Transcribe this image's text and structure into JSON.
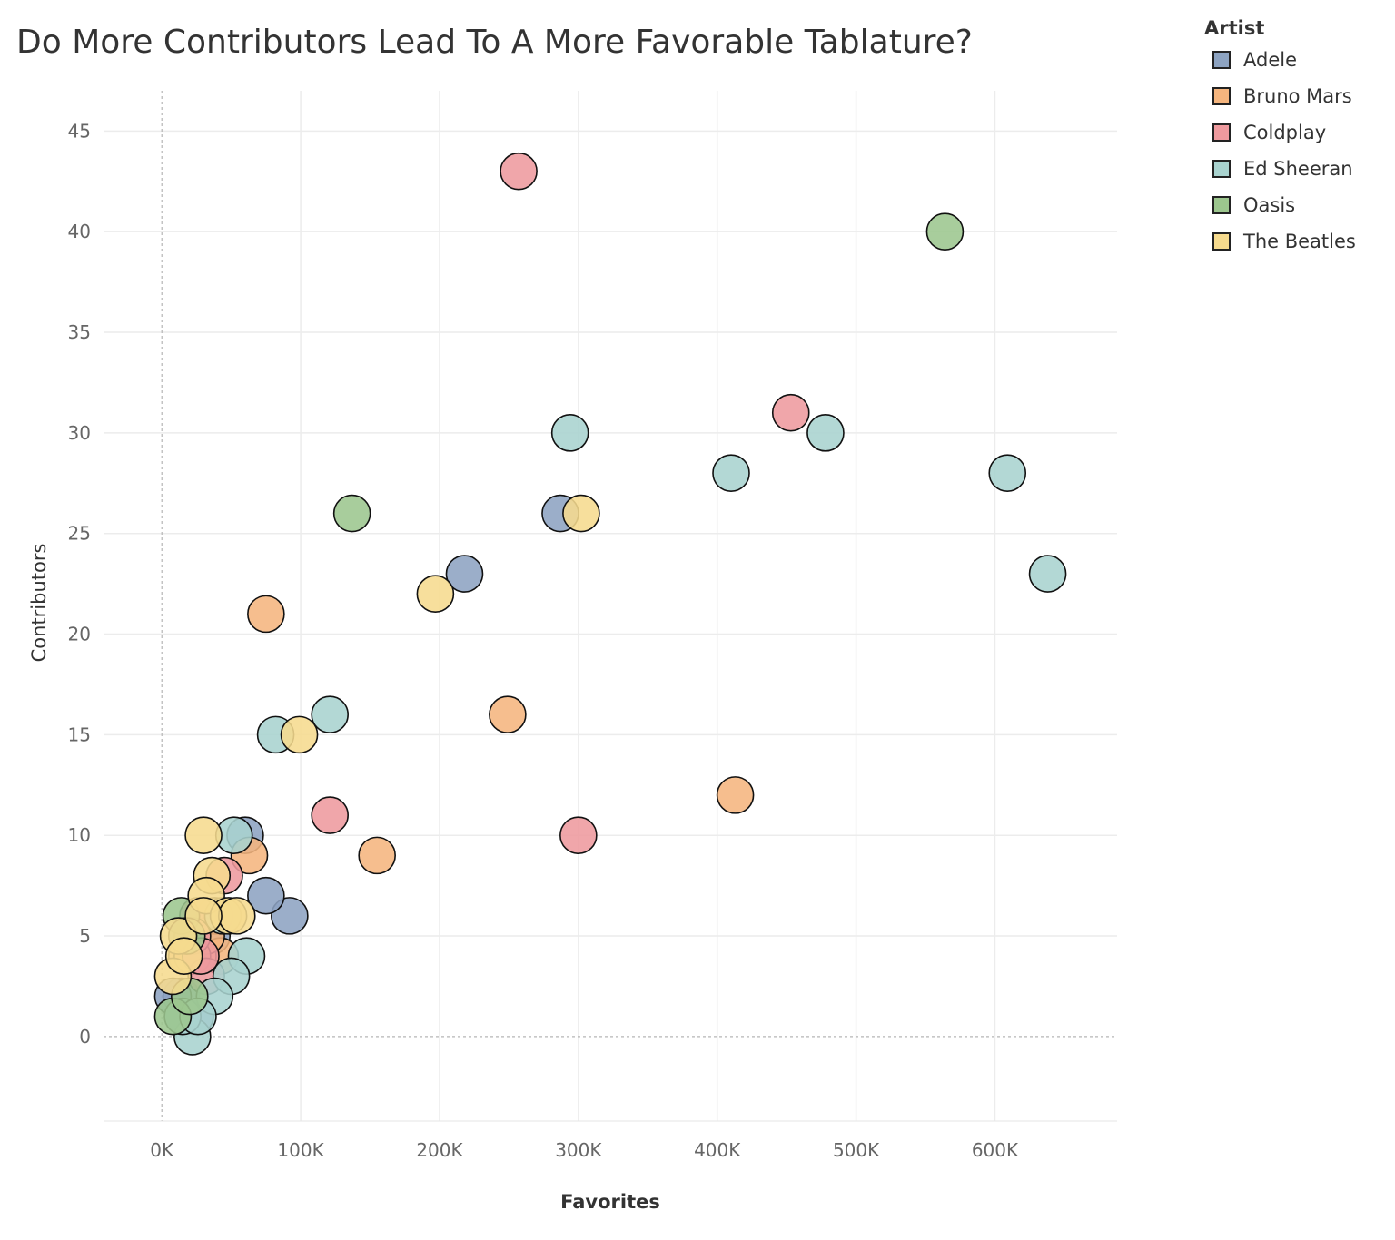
{
  "chart_data": {
    "type": "scatter",
    "title": "Do More Contributors Lead To A More Favorable Tablature?",
    "xlabel": "Favorites",
    "ylabel": "Contributors",
    "xlim": [
      -42000,
      688000
    ],
    "ylim": [
      -4.2,
      47
    ],
    "x_ticks": [
      0,
      100000,
      200000,
      300000,
      400000,
      500000,
      600000
    ],
    "x_tick_labels": [
      "0K",
      "100K",
      "200K",
      "300K",
      "400K",
      "500K",
      "600K"
    ],
    "y_ticks": [
      0,
      5,
      10,
      15,
      20,
      25,
      30,
      35,
      40,
      45
    ],
    "y_tick_labels": [
      "0",
      "5",
      "10",
      "15",
      "20",
      "25",
      "30",
      "35",
      "40",
      "45"
    ],
    "grid": true,
    "legend_title": "Artist",
    "legend_position": "top-right",
    "series": [
      {
        "name": "Adele",
        "color": "#8DA3C1",
        "points": [
          [
            287000,
            26
          ],
          [
            218000,
            23
          ],
          [
            92000,
            6
          ],
          [
            60000,
            10
          ],
          [
            75000,
            7
          ],
          [
            36000,
            5
          ],
          [
            24000,
            1
          ],
          [
            14000,
            2
          ],
          [
            8000,
            2
          ],
          [
            15000,
            1
          ],
          [
            38000,
            6
          ]
        ]
      },
      {
        "name": "Bruno Mars",
        "color": "#F5B57E",
        "points": [
          [
            413000,
            12
          ],
          [
            249000,
            16
          ],
          [
            155000,
            9
          ],
          [
            75000,
            21
          ],
          [
            63000,
            9
          ],
          [
            42000,
            4
          ],
          [
            26000,
            4
          ],
          [
            18000,
            4
          ],
          [
            32000,
            5
          ],
          [
            22000,
            4
          ]
        ]
      },
      {
        "name": "Coldplay",
        "color": "#EE9A9E",
        "points": [
          [
            257000,
            43
          ],
          [
            453000,
            31
          ],
          [
            300000,
            10
          ],
          [
            121000,
            11
          ],
          [
            45000,
            8
          ],
          [
            26000,
            6
          ],
          [
            22000,
            5
          ],
          [
            32000,
            3
          ],
          [
            28000,
            4
          ]
        ]
      },
      {
        "name": "Ed Sheeran",
        "color": "#A9D3CF",
        "points": [
          [
            294000,
            30
          ],
          [
            478000,
            30
          ],
          [
            410000,
            28
          ],
          [
            609000,
            28
          ],
          [
            638000,
            23
          ],
          [
            121000,
            16
          ],
          [
            82000,
            15
          ],
          [
            52000,
            10
          ],
          [
            61000,
            4
          ],
          [
            50000,
            3
          ],
          [
            38000,
            2
          ],
          [
            22000,
            0
          ],
          [
            15000,
            1
          ],
          [
            26000,
            1
          ],
          [
            44000,
            6
          ]
        ]
      },
      {
        "name": "Oasis",
        "color": "#9CC68E",
        "points": [
          [
            564000,
            40
          ],
          [
            137000,
            26
          ],
          [
            14000,
            6
          ],
          [
            8000,
            1
          ],
          [
            20000,
            2
          ],
          [
            18000,
            5
          ]
        ]
      },
      {
        "name": "The Beatles",
        "color": "#F6DB8E",
        "points": [
          [
            302000,
            26
          ],
          [
            197000,
            22
          ],
          [
            99000,
            15
          ],
          [
            30000,
            10
          ],
          [
            36000,
            8
          ],
          [
            32000,
            7
          ],
          [
            48000,
            6
          ],
          [
            54000,
            6
          ],
          [
            12000,
            5
          ],
          [
            8000,
            3
          ],
          [
            16000,
            4
          ],
          [
            30000,
            6
          ]
        ]
      }
    ]
  }
}
